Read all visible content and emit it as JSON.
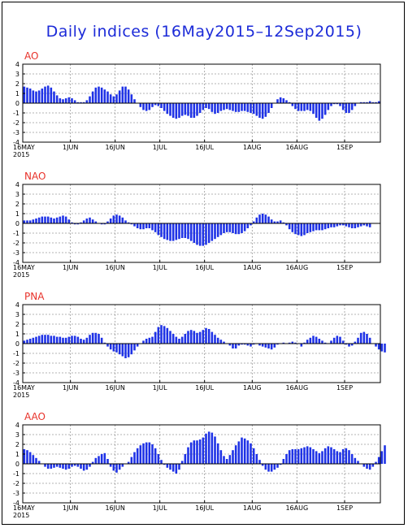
{
  "title": "Daily indices (16May2015–12Sep2015)",
  "chart_data": [
    {
      "type": "bar",
      "label": "AO",
      "ylim": [
        -4,
        4
      ],
      "yticks": [
        4,
        3,
        2,
        1,
        0,
        -1,
        -2,
        -3,
        -4
      ],
      "xticks": [
        "16MAY",
        "1JUN",
        "16JUN",
        "1JUL",
        "16JUL",
        "1AUG",
        "16AUG",
        "1SEP"
      ],
      "xticks_year": "2015",
      "grid": true,
      "bar_color": "#1e32e6",
      "values": [
        1.7,
        1.6,
        1.5,
        1.3,
        1.2,
        1.3,
        1.5,
        1.7,
        1.8,
        1.6,
        1.2,
        0.8,
        0.5,
        0.4,
        0.5,
        0.6,
        0.5,
        0.3,
        0.1,
        0.1,
        0.1,
        0.3,
        0.7,
        1.2,
        1.6,
        1.7,
        1.6,
        1.4,
        1.2,
        0.9,
        0.7,
        0.9,
        1.3,
        1.7,
        1.7,
        1.4,
        0.9,
        0.4,
        0.0,
        -0.4,
        -0.7,
        -0.8,
        -0.7,
        -0.4,
        -0.2,
        -0.3,
        -0.5,
        -0.8,
        -1.1,
        -1.3,
        -1.5,
        -1.6,
        -1.5,
        -1.3,
        -1.2,
        -1.3,
        -1.5,
        -1.5,
        -1.3,
        -1.0,
        -0.7,
        -0.5,
        -0.6,
        -0.9,
        -1.1,
        -1.0,
        -0.8,
        -0.7,
        -0.6,
        -0.7,
        -0.8,
        -0.9,
        -0.9,
        -0.8,
        -0.8,
        -0.9,
        -1.0,
        -1.1,
        -1.3,
        -1.5,
        -1.6,
        -1.4,
        -1.0,
        -0.5,
        0.0,
        0.4,
        0.6,
        0.5,
        0.3,
        0.1,
        -0.3,
        -0.6,
        -0.8,
        -0.8,
        -0.8,
        -0.7,
        -0.8,
        -1.1,
        -1.5,
        -1.8,
        -1.6,
        -1.2,
        -0.7,
        -0.3,
        -0.1,
        -0.1,
        -0.3,
        -0.7,
        -1.0,
        -1.0,
        -0.7,
        -0.3,
        0.0,
        0.1,
        0.1,
        0.1,
        0.2,
        0.1,
        0.1,
        0.2
      ]
    },
    {
      "type": "bar",
      "label": "NAO",
      "ylim": [
        -4,
        4
      ],
      "yticks": [
        4,
        3,
        2,
        1,
        0,
        -1,
        -2,
        -3,
        -4
      ],
      "xticks": [
        "16MAY",
        "1JUN",
        "16JUN",
        "1JUL",
        "16JUL",
        "1AUG",
        "16AUG",
        "1SEP"
      ],
      "xticks_year": "2015",
      "grid": true,
      "bar_color": "#1e32e6",
      "values": [
        0.3,
        0.3,
        0.3,
        0.4,
        0.5,
        0.6,
        0.7,
        0.7,
        0.7,
        0.6,
        0.5,
        0.6,
        0.7,
        0.8,
        0.7,
        0.4,
        0.1,
        -0.1,
        -0.1,
        0.1,
        0.3,
        0.5,
        0.6,
        0.4,
        0.2,
        0.0,
        -0.1,
        -0.1,
        0.2,
        0.5,
        0.8,
        0.9,
        0.8,
        0.6,
        0.3,
        0.1,
        -0.1,
        -0.3,
        -0.5,
        -0.6,
        -0.6,
        -0.5,
        -0.5,
        -0.7,
        -0.9,
        -1.2,
        -1.4,
        -1.6,
        -1.7,
        -1.8,
        -1.8,
        -1.7,
        -1.6,
        -1.5,
        -1.5,
        -1.6,
        -1.8,
        -2.0,
        -2.2,
        -2.3,
        -2.3,
        -2.2,
        -2.0,
        -1.8,
        -1.6,
        -1.4,
        -1.2,
        -1.0,
        -0.9,
        -0.9,
        -1.0,
        -1.1,
        -1.1,
        -1.0,
        -0.8,
        -0.5,
        -0.2,
        0.2,
        0.6,
        0.9,
        1.0,
        0.9,
        0.7,
        0.4,
        0.2,
        0.2,
        0.3,
        0.1,
        -0.2,
        -0.6,
        -0.9,
        -1.1,
        -1.2,
        -1.3,
        -1.2,
        -1.0,
        -0.9,
        -0.8,
        -0.7,
        -0.7,
        -0.7,
        -0.6,
        -0.5,
        -0.4,
        -0.4,
        -0.3,
        -0.2,
        -0.2,
        -0.3,
        -0.4,
        -0.5,
        -0.5,
        -0.4,
        -0.3,
        -0.2,
        -0.3,
        -0.4
      ]
    },
    {
      "type": "bar",
      "label": "PNA",
      "ylim": [
        -4,
        4
      ],
      "yticks": [
        4,
        3,
        2,
        1,
        0,
        -1,
        -2,
        -3,
        -4
      ],
      "xticks": [
        "16MAY",
        "1JUN",
        "16JUN",
        "1JUL",
        "16JUL",
        "1AUG",
        "16AUG",
        "1SEP"
      ],
      "xticks_year": "2015",
      "grid": true,
      "bar_color": "#1e32e6",
      "values": [
        0.3,
        0.4,
        0.5,
        0.6,
        0.7,
        0.8,
        0.9,
        0.9,
        0.9,
        0.8,
        0.8,
        0.7,
        0.7,
        0.6,
        0.6,
        0.7,
        0.8,
        0.8,
        0.7,
        0.5,
        0.4,
        0.6,
        0.9,
        1.1,
        1.1,
        1.0,
        0.6,
        0.1,
        -0.3,
        -0.6,
        -0.8,
        -0.9,
        -1.1,
        -1.3,
        -1.5,
        -1.4,
        -1.1,
        -0.7,
        -0.3,
        0.0,
        0.3,
        0.5,
        0.6,
        0.7,
        1.2,
        1.7,
        1.9,
        1.8,
        1.6,
        1.3,
        1.0,
        0.7,
        0.5,
        0.7,
        1.0,
        1.3,
        1.4,
        1.3,
        1.1,
        1.2,
        1.4,
        1.6,
        1.5,
        1.2,
        0.9,
        0.6,
        0.4,
        0.2,
        0.0,
        -0.2,
        -0.5,
        -0.5,
        -0.2,
        -0.1,
        -0.1,
        -0.2,
        -0.3,
        -0.1,
        0.0,
        -0.2,
        -0.3,
        -0.4,
        -0.5,
        -0.6,
        -0.4,
        -0.1,
        0.0,
        0.1,
        0.0,
        0.1,
        0.2,
        0.1,
        0.0,
        -0.3,
        0.1,
        0.4,
        0.6,
        0.8,
        0.7,
        0.5,
        0.3,
        0.1,
        0.0,
        0.3,
        0.6,
        0.8,
        0.7,
        0.3,
        -0.1,
        -0.3,
        -0.2,
        0.2,
        0.6,
        1.1,
        1.2,
        1.0,
        0.6,
        0.0,
        -0.3,
        -0.6,
        -0.8,
        -0.9
      ]
    },
    {
      "type": "bar",
      "label": "AAO",
      "ylim": [
        -4,
        4
      ],
      "yticks": [
        4,
        3,
        2,
        1,
        0,
        -1,
        -2,
        -3,
        -4
      ],
      "xticks": [
        "16MAY",
        "1JUN",
        "16JUN",
        "1JUL",
        "16JUL",
        "1AUG",
        "16AUG",
        "1SEP"
      ],
      "xticks_year": "2015",
      "grid": true,
      "bar_color": "#1e32e6",
      "values": [
        1.5,
        1.4,
        1.2,
        0.9,
        0.6,
        0.3,
        0.0,
        -0.3,
        -0.5,
        -0.5,
        -0.4,
        -0.3,
        -0.4,
        -0.5,
        -0.6,
        -0.5,
        -0.3,
        -0.2,
        -0.3,
        -0.5,
        -0.7,
        -0.6,
        -0.3,
        0.2,
        0.6,
        0.8,
        1.0,
        1.1,
        0.5,
        -0.3,
        -0.7,
        -0.9,
        -0.6,
        -0.3,
        0.0,
        0.2,
        0.7,
        1.2,
        1.6,
        1.9,
        2.1,
        2.2,
        2.2,
        2.0,
        1.6,
        1.0,
        0.4,
        -0.1,
        -0.4,
        -0.6,
        -0.8,
        -1.0,
        -0.6,
        0.3,
        1.0,
        1.7,
        2.2,
        2.4,
        2.4,
        2.5,
        2.7,
        3.1,
        3.3,
        3.2,
        2.8,
        2.1,
        1.4,
        0.8,
        0.5,
        0.9,
        1.4,
        1.9,
        2.3,
        2.7,
        2.6,
        2.4,
        2.1,
        1.6,
        1.0,
        0.4,
        -0.2,
        -0.6,
        -0.8,
        -0.8,
        -0.6,
        -0.4,
        -0.1,
        0.5,
        1.0,
        1.4,
        1.5,
        1.5,
        1.5,
        1.6,
        1.7,
        1.8,
        1.7,
        1.5,
        1.3,
        1.1,
        1.3,
        1.6,
        1.8,
        1.7,
        1.5,
        1.3,
        1.2,
        1.5,
        1.6,
        1.4,
        1.0,
        0.6,
        0.3,
        0.0,
        -0.3,
        -0.5,
        -0.6,
        -0.3,
        0.2,
        0.7,
        1.3,
        1.9
      ]
    }
  ]
}
